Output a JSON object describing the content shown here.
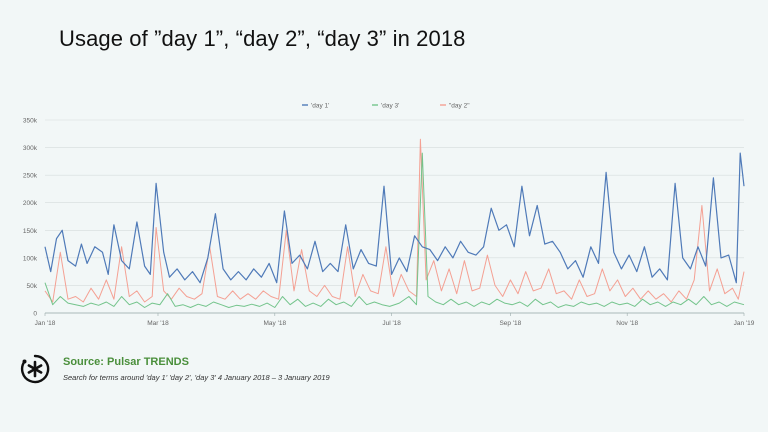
{
  "page": {
    "title": "Usage of ”day 1”, “day 2”, “day 3” in 2018",
    "source_label": "Source: Pulsar TRENDS",
    "source_description": "Search for terms around 'day 1' 'day 2', 'day 3' 4 January 2018 – 3 January 2019",
    "logo_icon": "pulsar-asterisk-icon"
  },
  "chart_data": {
    "type": "line",
    "title": "Usage of ”day 1”, “day 2”, “day 3” in 2018",
    "xlabel": "",
    "ylabel": "",
    "ylim": [
      0,
      350000
    ],
    "y_ticks": [
      "0",
      "50k",
      "100k",
      "150k",
      "200k",
      "250k",
      "300k",
      "350k"
    ],
    "y_tick_values": [
      0,
      50000,
      100000,
      150000,
      200000,
      250000,
      300000,
      350000
    ],
    "x_ticks": [
      "Jan '18",
      "Mar '18",
      "May '18",
      "Jul '18",
      "Sep '18",
      "Nov '18",
      "Jan '19"
    ],
    "x_tick_days": [
      0,
      59,
      120,
      181,
      243,
      304,
      365
    ],
    "grid": true,
    "legend_position": "top-center",
    "series": [
      {
        "name": "'day 1'",
        "color": "#4f7ab8",
        "points": [
          [
            0,
            120000
          ],
          [
            3,
            75000
          ],
          [
            6,
            135000
          ],
          [
            9,
            150000
          ],
          [
            12,
            95000
          ],
          [
            16,
            85000
          ],
          [
            19,
            125000
          ],
          [
            22,
            90000
          ],
          [
            26,
            120000
          ],
          [
            30,
            110000
          ],
          [
            33,
            70000
          ],
          [
            36,
            160000
          ],
          [
            40,
            95000
          ],
          [
            44,
            80000
          ],
          [
            48,
            165000
          ],
          [
            52,
            85000
          ],
          [
            55,
            70000
          ],
          [
            58,
            235000
          ],
          [
            62,
            110000
          ],
          [
            65,
            65000
          ],
          [
            69,
            80000
          ],
          [
            73,
            60000
          ],
          [
            77,
            75000
          ],
          [
            81,
            55000
          ],
          [
            85,
            100000
          ],
          [
            89,
            180000
          ],
          [
            93,
            80000
          ],
          [
            97,
            60000
          ],
          [
            101,
            75000
          ],
          [
            105,
            60000
          ],
          [
            109,
            80000
          ],
          [
            113,
            65000
          ],
          [
            117,
            90000
          ],
          [
            121,
            55000
          ],
          [
            125,
            185000
          ],
          [
            129,
            90000
          ],
          [
            133,
            105000
          ],
          [
            137,
            80000
          ],
          [
            141,
            130000
          ],
          [
            145,
            75000
          ],
          [
            149,
            90000
          ],
          [
            153,
            75000
          ],
          [
            157,
            160000
          ],
          [
            161,
            80000
          ],
          [
            165,
            115000
          ],
          [
            169,
            90000
          ],
          [
            173,
            85000
          ],
          [
            177,
            230000
          ],
          [
            181,
            70000
          ],
          [
            185,
            100000
          ],
          [
            189,
            75000
          ],
          [
            193,
            140000
          ],
          [
            197,
            120000
          ],
          [
            201,
            115000
          ],
          [
            205,
            95000
          ],
          [
            209,
            120000
          ],
          [
            213,
            100000
          ],
          [
            217,
            130000
          ],
          [
            221,
            110000
          ],
          [
            225,
            105000
          ],
          [
            229,
            120000
          ],
          [
            233,
            190000
          ],
          [
            237,
            150000
          ],
          [
            241,
            160000
          ],
          [
            245,
            120000
          ],
          [
            249,
            230000
          ],
          [
            253,
            140000
          ],
          [
            257,
            195000
          ],
          [
            261,
            125000
          ],
          [
            265,
            130000
          ],
          [
            269,
            110000
          ],
          [
            273,
            80000
          ],
          [
            277,
            95000
          ],
          [
            281,
            65000
          ],
          [
            285,
            120000
          ],
          [
            289,
            90000
          ],
          [
            293,
            255000
          ],
          [
            297,
            110000
          ],
          [
            301,
            80000
          ],
          [
            305,
            105000
          ],
          [
            309,
            75000
          ],
          [
            313,
            120000
          ],
          [
            317,
            65000
          ],
          [
            321,
            80000
          ],
          [
            325,
            60000
          ],
          [
            329,
            235000
          ],
          [
            333,
            100000
          ],
          [
            337,
            80000
          ],
          [
            341,
            120000
          ],
          [
            345,
            85000
          ],
          [
            349,
            245000
          ],
          [
            353,
            100000
          ],
          [
            357,
            105000
          ],
          [
            361,
            55000
          ],
          [
            363,
            290000
          ],
          [
            365,
            230000
          ]
        ]
      },
      {
        "name": "'day 3'",
        "color": "#74c48c",
        "points": [
          [
            0,
            55000
          ],
          [
            4,
            15000
          ],
          [
            8,
            30000
          ],
          [
            12,
            18000
          ],
          [
            16,
            15000
          ],
          [
            20,
            12000
          ],
          [
            24,
            18000
          ],
          [
            28,
            14000
          ],
          [
            32,
            20000
          ],
          [
            36,
            12000
          ],
          [
            40,
            30000
          ],
          [
            44,
            15000
          ],
          [
            48,
            20000
          ],
          [
            52,
            10000
          ],
          [
            56,
            18000
          ],
          [
            60,
            15000
          ],
          [
            64,
            35000
          ],
          [
            68,
            12000
          ],
          [
            72,
            15000
          ],
          [
            76,
            10000
          ],
          [
            80,
            16000
          ],
          [
            84,
            12000
          ],
          [
            88,
            20000
          ],
          [
            92,
            15000
          ],
          [
            96,
            10000
          ],
          [
            100,
            14000
          ],
          [
            104,
            12000
          ],
          [
            108,
            16000
          ],
          [
            112,
            12000
          ],
          [
            116,
            18000
          ],
          [
            120,
            10000
          ],
          [
            124,
            30000
          ],
          [
            128,
            15000
          ],
          [
            132,
            25000
          ],
          [
            136,
            12000
          ],
          [
            140,
            18000
          ],
          [
            144,
            12000
          ],
          [
            148,
            25000
          ],
          [
            152,
            15000
          ],
          [
            156,
            20000
          ],
          [
            160,
            12000
          ],
          [
            164,
            30000
          ],
          [
            168,
            15000
          ],
          [
            172,
            20000
          ],
          [
            176,
            15000
          ],
          [
            180,
            12000
          ],
          [
            185,
            18000
          ],
          [
            190,
            30000
          ],
          [
            194,
            15000
          ],
          [
            197,
            290000
          ],
          [
            200,
            30000
          ],
          [
            204,
            20000
          ],
          [
            208,
            15000
          ],
          [
            212,
            25000
          ],
          [
            216,
            15000
          ],
          [
            220,
            20000
          ],
          [
            224,
            12000
          ],
          [
            228,
            20000
          ],
          [
            232,
            15000
          ],
          [
            236,
            25000
          ],
          [
            240,
            18000
          ],
          [
            244,
            15000
          ],
          [
            248,
            20000
          ],
          [
            252,
            12000
          ],
          [
            256,
            25000
          ],
          [
            260,
            15000
          ],
          [
            264,
            20000
          ],
          [
            268,
            10000
          ],
          [
            272,
            15000
          ],
          [
            276,
            12000
          ],
          [
            280,
            20000
          ],
          [
            284,
            15000
          ],
          [
            288,
            18000
          ],
          [
            292,
            12000
          ],
          [
            296,
            20000
          ],
          [
            300,
            15000
          ],
          [
            304,
            18000
          ],
          [
            308,
            12000
          ],
          [
            312,
            25000
          ],
          [
            316,
            15000
          ],
          [
            320,
            20000
          ],
          [
            324,
            12000
          ],
          [
            328,
            20000
          ],
          [
            332,
            15000
          ],
          [
            336,
            25000
          ],
          [
            340,
            15000
          ],
          [
            344,
            30000
          ],
          [
            348,
            15000
          ],
          [
            352,
            20000
          ],
          [
            356,
            12000
          ],
          [
            360,
            20000
          ],
          [
            365,
            15000
          ]
        ]
      },
      {
        "name": "\"day 2\"",
        "color": "#f4a093",
        "points": [
          [
            0,
            40000
          ],
          [
            4,
            20000
          ],
          [
            8,
            110000
          ],
          [
            12,
            25000
          ],
          [
            16,
            30000
          ],
          [
            20,
            20000
          ],
          [
            24,
            45000
          ],
          [
            28,
            25000
          ],
          [
            32,
            60000
          ],
          [
            36,
            25000
          ],
          [
            40,
            120000
          ],
          [
            44,
            30000
          ],
          [
            48,
            40000
          ],
          [
            52,
            20000
          ],
          [
            56,
            30000
          ],
          [
            58,
            155000
          ],
          [
            62,
            40000
          ],
          [
            66,
            25000
          ],
          [
            70,
            45000
          ],
          [
            74,
            30000
          ],
          [
            78,
            25000
          ],
          [
            82,
            35000
          ],
          [
            86,
            120000
          ],
          [
            90,
            30000
          ],
          [
            94,
            25000
          ],
          [
            98,
            40000
          ],
          [
            102,
            25000
          ],
          [
            106,
            35000
          ],
          [
            110,
            25000
          ],
          [
            114,
            40000
          ],
          [
            118,
            30000
          ],
          [
            122,
            25000
          ],
          [
            126,
            150000
          ],
          [
            130,
            40000
          ],
          [
            134,
            115000
          ],
          [
            138,
            40000
          ],
          [
            142,
            30000
          ],
          [
            146,
            50000
          ],
          [
            150,
            30000
          ],
          [
            154,
            25000
          ],
          [
            158,
            120000
          ],
          [
            162,
            30000
          ],
          [
            166,
            70000
          ],
          [
            170,
            40000
          ],
          [
            174,
            35000
          ],
          [
            178,
            120000
          ],
          [
            182,
            30000
          ],
          [
            186,
            70000
          ],
          [
            190,
            40000
          ],
          [
            194,
            30000
          ],
          [
            196,
            315000
          ],
          [
            199,
            60000
          ],
          [
            203,
            95000
          ],
          [
            207,
            40000
          ],
          [
            211,
            80000
          ],
          [
            215,
            35000
          ],
          [
            219,
            95000
          ],
          [
            223,
            40000
          ],
          [
            227,
            45000
          ],
          [
            231,
            105000
          ],
          [
            235,
            50000
          ],
          [
            239,
            30000
          ],
          [
            243,
            60000
          ],
          [
            247,
            35000
          ],
          [
            251,
            75000
          ],
          [
            255,
            40000
          ],
          [
            259,
            45000
          ],
          [
            263,
            80000
          ],
          [
            267,
            35000
          ],
          [
            271,
            40000
          ],
          [
            275,
            25000
          ],
          [
            279,
            60000
          ],
          [
            283,
            30000
          ],
          [
            287,
            35000
          ],
          [
            291,
            80000
          ],
          [
            295,
            40000
          ],
          [
            299,
            60000
          ],
          [
            303,
            30000
          ],
          [
            307,
            45000
          ],
          [
            311,
            25000
          ],
          [
            315,
            40000
          ],
          [
            319,
            25000
          ],
          [
            323,
            35000
          ],
          [
            327,
            20000
          ],
          [
            331,
            40000
          ],
          [
            335,
            25000
          ],
          [
            339,
            60000
          ],
          [
            343,
            195000
          ],
          [
            347,
            40000
          ],
          [
            351,
            80000
          ],
          [
            355,
            35000
          ],
          [
            359,
            45000
          ],
          [
            362,
            25000
          ],
          [
            365,
            75000
          ]
        ]
      }
    ]
  }
}
